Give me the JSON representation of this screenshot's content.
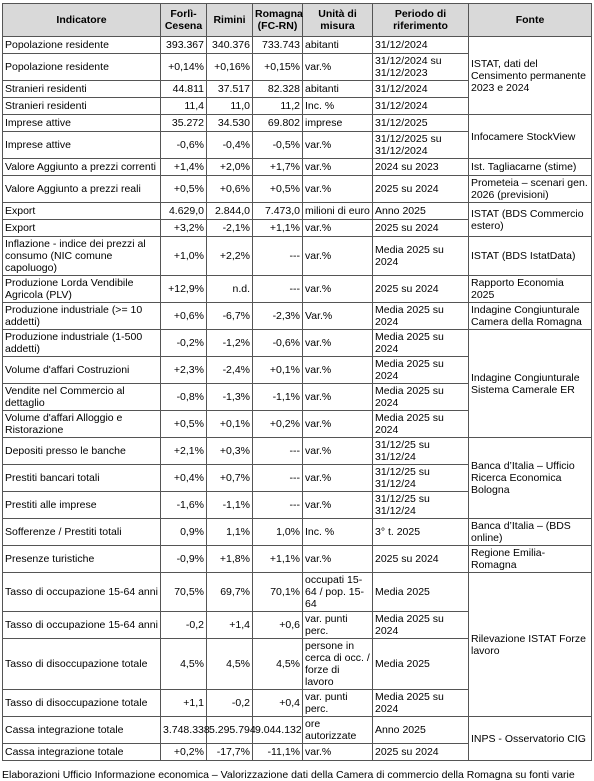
{
  "table": {
    "header": [
      "Indicatore",
      "Forlì-Cesena",
      "Rimini",
      "Romagna (FC-RN)",
      "Unità di misura",
      "Periodo di riferimento",
      "Fonte"
    ],
    "rows": [
      [
        "Popolazione residente",
        "393.367",
        "340.376",
        "733.743",
        "abitanti",
        "31/12/2024"
      ],
      [
        "Popolazione residente",
        "+0,14%",
        "+0,16%",
        "+0,15%",
        "var.%",
        "31/12/2024 su 31/12/2023"
      ],
      [
        "Stranieri residenti",
        "44.811",
        "37.517",
        "82.328",
        "abitanti",
        "31/12/2024"
      ],
      [
        "Stranieri residenti",
        "11,4",
        "11,0",
        "11,2",
        "Inc. %",
        "31/12/2024"
      ],
      [
        "Imprese attive",
        "35.272",
        "34.530",
        "69.802",
        "imprese",
        "31/12/2025"
      ],
      [
        "Imprese attive",
        "-0,6%",
        "-0,4%",
        "-0,5%",
        "var.%",
        "31/12/2025 su 31/12/2024"
      ],
      [
        "Valore Aggiunto a prezzi correnti",
        "+1,4%",
        "+2,0%",
        "+1,7%",
        "var.%",
        "2024 su 2023"
      ],
      [
        "Valore Aggiunto a prezzi reali",
        "+0,5%",
        "+0,6%",
        "+0,5%",
        "var.%",
        "2025 su 2024"
      ],
      [
        "Export",
        "4.629,0",
        "2.844,0",
        "7.473,0",
        "milioni di euro",
        "Anno 2025"
      ],
      [
        "Export",
        "+3,2%",
        "-2,1%",
        "+1,1%",
        "var.%",
        "2025 su 2024"
      ],
      [
        "Inflazione - indice dei prezzi al consumo (NIC comune capoluogo)",
        "+1,0%",
        "+2,2%",
        "---",
        "var.%",
        "Media 2025 su 2024"
      ],
      [
        "Produzione Lorda Vendibile Agricola (PLV)",
        "+12,9%",
        "n.d.",
        "---",
        "var.%",
        "2025 su 2024"
      ],
      [
        "Produzione industriale (>= 10 addetti)",
        "+0,6%",
        "-6,7%",
        "-2,3%",
        "Var.%",
        "Media 2025 su 2024"
      ],
      [
        "Produzione industriale (1-500 addetti)",
        "-0,2%",
        "-1,2%",
        "-0,6%",
        "var.%",
        "Media 2025 su 2024"
      ],
      [
        "Volume d'affari Costruzioni",
        "+2,3%",
        "-2,4%",
        "+0,1%",
        "var.%",
        "Media 2025 su 2024"
      ],
      [
        "Vendite nel Commercio al dettaglio",
        "-0,8%",
        "-1,3%",
        "-1,1%",
        "var.%",
        "Media 2025 su 2024"
      ],
      [
        "Volume d'affari Alloggio e Ristorazione",
        "+0,5%",
        "+0,1%",
        "+0,2%",
        "var.%",
        "Media 2025 su 2024"
      ],
      [
        "Depositi presso le banche",
        "+2,1%",
        "+0,3%",
        "---",
        "var.%",
        "31/12/25 su 31/12/24"
      ],
      [
        "Prestiti bancari totali",
        "+0,4%",
        "+0,7%",
        "---",
        "var.%",
        "31/12/25 su 31/12/24"
      ],
      [
        "Prestiti alle imprese",
        "-1,6%",
        "-1,1%",
        "---",
        "var.%",
        "31/12/25 su 31/12/24"
      ],
      [
        "Sofferenze / Prestiti totali",
        "0,9%",
        "1,1%",
        "1,0%",
        "Inc. %",
        "3° t. 2025"
      ],
      [
        "Presenze turistiche",
        "-0,9%",
        "+1,8%",
        "+1,1%",
        "var.%",
        "2025 su 2024"
      ],
      [
        "Tasso di occupazione 15-64 anni",
        "70,5%",
        "69,7%",
        "70,1%",
        "occupati 15-64 / pop. 15-64",
        "Media 2025"
      ],
      [
        "Tasso di occupazione 15-64 anni",
        "-0,2",
        "+1,4",
        "+0,6",
        "var. punti perc.",
        "Media 2025 su 2024"
      ],
      [
        "Tasso di disoccupazione totale",
        "4,5%",
        "4,5%",
        "4,5%",
        "persone in cerca di occ. / forze di lavoro",
        "Media 2025"
      ],
      [
        "Tasso di disoccupazione totale",
        "+1,1",
        "-0,2",
        "+0,4",
        "var. punti perc.",
        "Media 2025 su 2024"
      ],
      [
        "Cassa integrazione totale",
        "3.748.338",
        "5.295.794",
        "9.044.132",
        "ore autorizzate",
        "Anno 2025"
      ],
      [
        "Cassa integrazione totale",
        "+0,2%",
        "-17,7%",
        "-11,1%",
        "var.%",
        "2025 su 2024"
      ]
    ],
    "sources": [
      "ISTAT, dati del Censimento permanente 2023 e 2024",
      "Infocamere StockView",
      "Ist. Tagliacarne (stime)",
      "Prometeia – scenari gen. 2026 (previsioni)",
      "ISTAT (BDS Commercio estero)",
      "ISTAT (BDS IstatData)",
      "Rapporto Economia 2025",
      "Indagine Congiunturale Camera della Romagna",
      "Indagine Congiunturale Sistema Camerale ER",
      "Banca d’Italia – Ufficio Ricerca Economica Bologna",
      "Banca d’Italia – (BDS online)",
      "Regione Emilia-Romagna",
      "Rilevazione ISTAT Forze lavoro",
      "INPS - Osservatorio CIG"
    ]
  },
  "footer": "Elaborazioni Ufficio Informazione economica – Valorizzazione dati della Camera di commercio della Romagna su fonti varie"
}
